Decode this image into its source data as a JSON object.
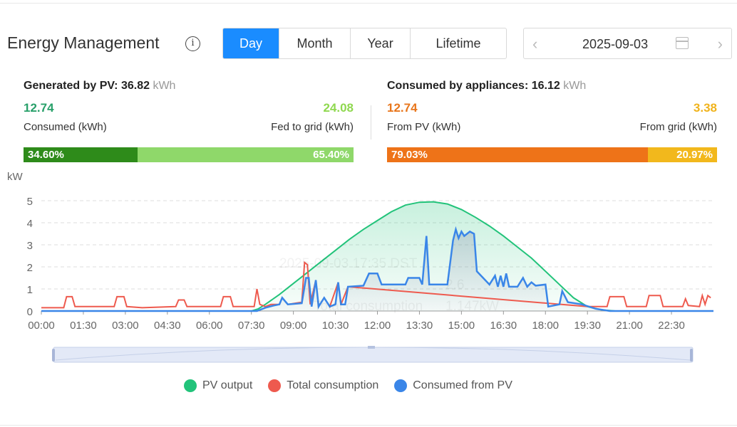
{
  "header": {
    "title": "Energy Management",
    "tabs": [
      "Day",
      "Month",
      "Year",
      "Lifetime"
    ],
    "active_tab": "Day",
    "date": "2025-09-03"
  },
  "generated": {
    "label": "Generated by PV:",
    "value": "36.82",
    "unit": "kWh",
    "left_value": "12.74",
    "left_label": "Consumed (kWh)",
    "right_value": "24.08",
    "right_label": "Fed to grid (kWh)",
    "left_pct": 34.6,
    "left_pct_label": "34.60%",
    "right_pct_label": "65.40%",
    "colors": {
      "left": "#2e8b1a",
      "right": "#8fd86a",
      "left_text": "#28a06a",
      "right_text": "#8fd84f"
    }
  },
  "consumed": {
    "label": "Consumed by appliances:",
    "value": "16.12",
    "unit": "kWh",
    "left_value": "12.74",
    "left_label": "From PV (kWh)",
    "right_value": "3.38",
    "right_label": "From grid (kWh)",
    "left_pct": 79.03,
    "left_pct_label": "79.03%",
    "right_pct_label": "20.97%",
    "colors": {
      "left": "#ee7318",
      "right": "#f2b81c",
      "left_text": "#e8761c",
      "right_text": "#f0b31c"
    }
  },
  "tooltip_ghost": {
    "time": "2025-09-03 17:35 DST",
    "row2": "Total consumption",
    "row2_value": "1.147kW",
    "row1_value": "2.6"
  },
  "chart_data": {
    "type": "line",
    "ylabel": "kW",
    "ylim": [
      0,
      5
    ],
    "yticks": [
      "0",
      "1",
      "2",
      "3",
      "4",
      "5"
    ],
    "xticks": [
      "00:00",
      "01:30",
      "03:00",
      "04:30",
      "06:00",
      "07:30",
      "09:00",
      "10:30",
      "12:00",
      "13:30",
      "15:00",
      "16:30",
      "18:00",
      "19:30",
      "21:00",
      "22:30"
    ],
    "xrange_hours": [
      0,
      24
    ],
    "legend": [
      "PV output",
      "Total consumption",
      "Consumed from PV"
    ],
    "colors": {
      "pv": "#22c37a",
      "total": "#ee5a4e",
      "self": "#3a86e8"
    },
    "series": [
      {
        "name": "PV output",
        "points": [
          [
            0,
            0
          ],
          [
            7.5,
            0
          ],
          [
            7.75,
            0.1
          ],
          [
            8,
            0.3
          ],
          [
            8.5,
            0.75
          ],
          [
            9,
            1.25
          ],
          [
            9.5,
            1.75
          ],
          [
            10,
            2.25
          ],
          [
            10.5,
            2.75
          ],
          [
            11,
            3.25
          ],
          [
            11.5,
            3.7
          ],
          [
            12,
            4.1
          ],
          [
            12.5,
            4.5
          ],
          [
            13,
            4.8
          ],
          [
            13.5,
            4.93
          ],
          [
            14,
            4.95
          ],
          [
            14.5,
            4.85
          ],
          [
            15,
            4.6
          ],
          [
            15.5,
            4.25
          ],
          [
            16,
            3.85
          ],
          [
            16.5,
            3.4
          ],
          [
            17,
            2.9
          ],
          [
            17.5,
            2.4
          ],
          [
            18,
            1.8
          ],
          [
            18.5,
            1.2
          ],
          [
            19,
            0.6
          ],
          [
            19.5,
            0.2
          ],
          [
            20,
            0.05
          ],
          [
            20.5,
            0
          ],
          [
            24,
            0
          ]
        ]
      },
      {
        "name": "Total consumption",
        "points": [
          [
            0,
            0.15
          ],
          [
            0.8,
            0.15
          ],
          [
            0.9,
            0.65
          ],
          [
            1.1,
            0.65
          ],
          [
            1.2,
            0.2
          ],
          [
            2.6,
            0.2
          ],
          [
            2.7,
            0.65
          ],
          [
            2.95,
            0.65
          ],
          [
            3.05,
            0.2
          ],
          [
            3.6,
            0.15
          ],
          [
            4.8,
            0.2
          ],
          [
            4.9,
            0.5
          ],
          [
            5.1,
            0.5
          ],
          [
            5.2,
            0.2
          ],
          [
            6.4,
            0.2
          ],
          [
            6.5,
            0.65
          ],
          [
            6.75,
            0.65
          ],
          [
            6.85,
            0.2
          ],
          [
            7.6,
            0.2
          ],
          [
            7.7,
            1.0
          ],
          [
            7.8,
            0.3
          ],
          [
            8.0,
            0.2
          ],
          [
            8.2,
            0.3
          ],
          [
            8.5,
            0.3
          ],
          [
            8.6,
            0.6
          ],
          [
            8.8,
            0.3
          ],
          [
            9.3,
            0.4
          ],
          [
            9.4,
            2.2
          ],
          [
            9.5,
            2.1
          ],
          [
            9.6,
            0.3
          ],
          [
            9.8,
            1.4
          ],
          [
            9.9,
            0.2
          ],
          [
            10.1,
            0.6
          ],
          [
            10.3,
            0.2
          ],
          [
            10.6,
            1.3
          ],
          [
            10.7,
            0.3
          ],
          [
            10.95,
            1.1
          ],
          [
            19.5,
            0.2
          ],
          [
            20.2,
            0.2
          ],
          [
            20.3,
            0.65
          ],
          [
            20.8,
            0.65
          ],
          [
            20.9,
            0.2
          ],
          [
            21.6,
            0.2
          ],
          [
            21.7,
            0.7
          ],
          [
            22.1,
            0.7
          ],
          [
            22.2,
            0.2
          ],
          [
            22.9,
            0.2
          ],
          [
            23.0,
            0.55
          ],
          [
            23.1,
            0.25
          ],
          [
            23.5,
            0.2
          ],
          [
            23.6,
            0.7
          ],
          [
            23.7,
            0.3
          ],
          [
            23.8,
            0.7
          ],
          [
            23.9,
            0.6
          ]
        ]
      },
      {
        "name": "Consumed from PV",
        "points": [
          [
            0,
            0
          ],
          [
            7.7,
            0
          ],
          [
            8.0,
            0.15
          ],
          [
            8.3,
            0.25
          ],
          [
            8.5,
            0.3
          ],
          [
            8.6,
            0.6
          ],
          [
            8.8,
            0.3
          ],
          [
            9.3,
            0.35
          ],
          [
            9.45,
            1.5
          ],
          [
            9.55,
            1.5
          ],
          [
            9.65,
            0.2
          ],
          [
            9.8,
            1.4
          ],
          [
            9.9,
            0.2
          ],
          [
            10.1,
            0.6
          ],
          [
            10.3,
            0.2
          ],
          [
            10.5,
            0.3
          ],
          [
            10.6,
            1.3
          ],
          [
            10.7,
            0.3
          ],
          [
            10.85,
            0.3
          ],
          [
            10.95,
            1.1
          ],
          [
            11.5,
            1.15
          ],
          [
            11.7,
            1.7
          ],
          [
            12.0,
            1.7
          ],
          [
            12.15,
            1.2
          ],
          [
            13.0,
            1.2
          ],
          [
            13.1,
            1.5
          ],
          [
            13.5,
            1.5
          ],
          [
            13.6,
            1.2
          ],
          [
            13.75,
            3.4
          ],
          [
            13.85,
            1.2
          ],
          [
            14.5,
            1.2
          ],
          [
            14.7,
            3.2
          ],
          [
            14.8,
            3.7
          ],
          [
            14.9,
            3.3
          ],
          [
            15.0,
            3.6
          ],
          [
            15.1,
            3.4
          ],
          [
            15.3,
            3.6
          ],
          [
            15.45,
            3.5
          ],
          [
            15.55,
            1.8
          ],
          [
            16.0,
            1.2
          ],
          [
            16.2,
            1.6
          ],
          [
            16.3,
            1.1
          ],
          [
            16.4,
            1.6
          ],
          [
            16.5,
            1.1
          ],
          [
            16.6,
            1.7
          ],
          [
            16.7,
            1.1
          ],
          [
            17.0,
            1.1
          ],
          [
            17.2,
            1.5
          ],
          [
            17.35,
            1.1
          ],
          [
            17.5,
            1.3
          ],
          [
            17.65,
            1.15
          ],
          [
            18.0,
            1.2
          ],
          [
            18.1,
            0.2
          ],
          [
            18.5,
            0.3
          ],
          [
            18.6,
            0.9
          ],
          [
            18.8,
            0.4
          ],
          [
            19.3,
            0.3
          ],
          [
            19.8,
            0.1
          ],
          [
            20.3,
            0
          ],
          [
            24,
            0
          ]
        ]
      }
    ]
  }
}
